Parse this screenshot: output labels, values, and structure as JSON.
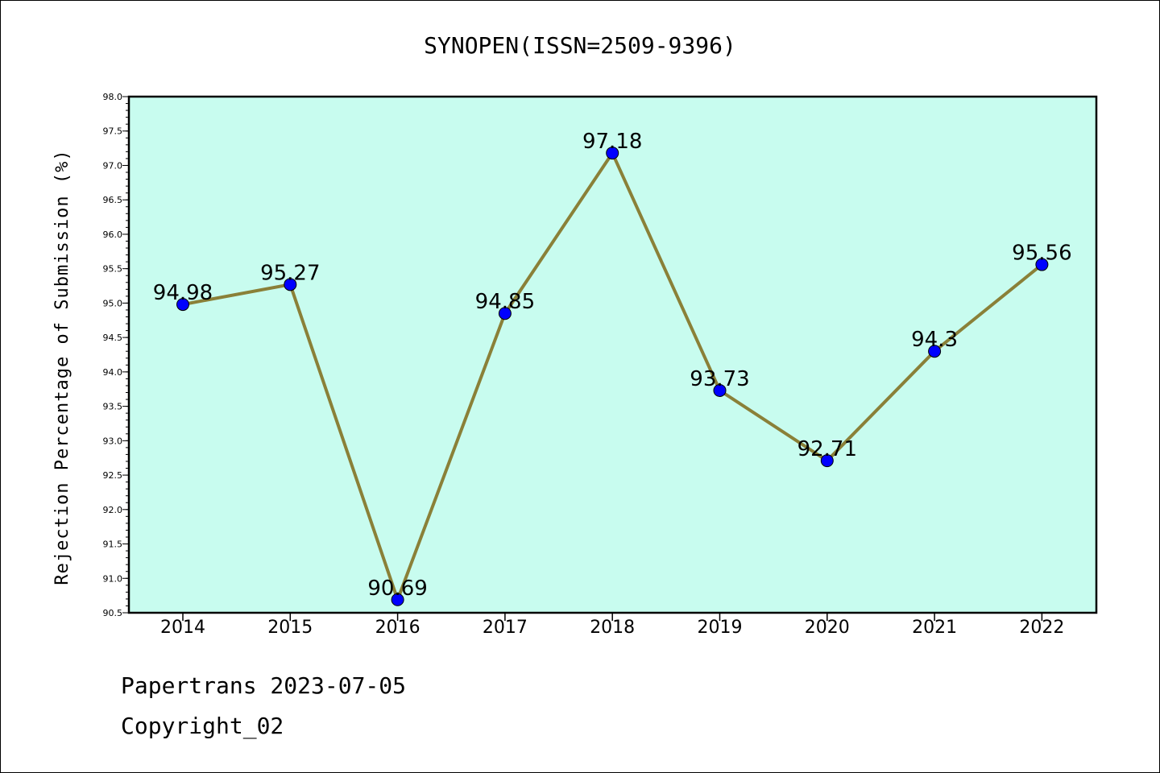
{
  "chart_data": {
    "type": "line",
    "title": "SYNOPEN(ISSN=2509-9396)",
    "xlabel": "",
    "ylabel": "Rejection Percentage of Submission (%)",
    "categories": [
      "2014",
      "2015",
      "2016",
      "2017",
      "2018",
      "2019",
      "2020",
      "2021",
      "2022"
    ],
    "values": [
      94.98,
      95.27,
      90.69,
      94.85,
      97.18,
      93.73,
      92.71,
      94.3,
      95.56
    ],
    "value_labels": [
      "94.98",
      "95.27",
      "90.69",
      "94.85",
      "97.18",
      "93.73",
      "92.71",
      "94.3",
      "95.56"
    ],
    "ylim": [
      90.5,
      98.0
    ],
    "ytick_labels": [
      "90.5",
      "91.0",
      "91.5",
      "92.0",
      "92.5",
      "93.0",
      "93.5",
      "94.0",
      "94.5",
      "95.0",
      "95.5",
      "96.0",
      "96.5",
      "97.0",
      "97.5",
      "98.0"
    ],
    "grid": false,
    "colors": {
      "plot_background": "#c8fcef",
      "line": "#8a8038",
      "marker": "#0000ff"
    }
  },
  "footer": {
    "line1": "Papertrans 2023-07-05",
    "line2": "Copyright_02"
  }
}
